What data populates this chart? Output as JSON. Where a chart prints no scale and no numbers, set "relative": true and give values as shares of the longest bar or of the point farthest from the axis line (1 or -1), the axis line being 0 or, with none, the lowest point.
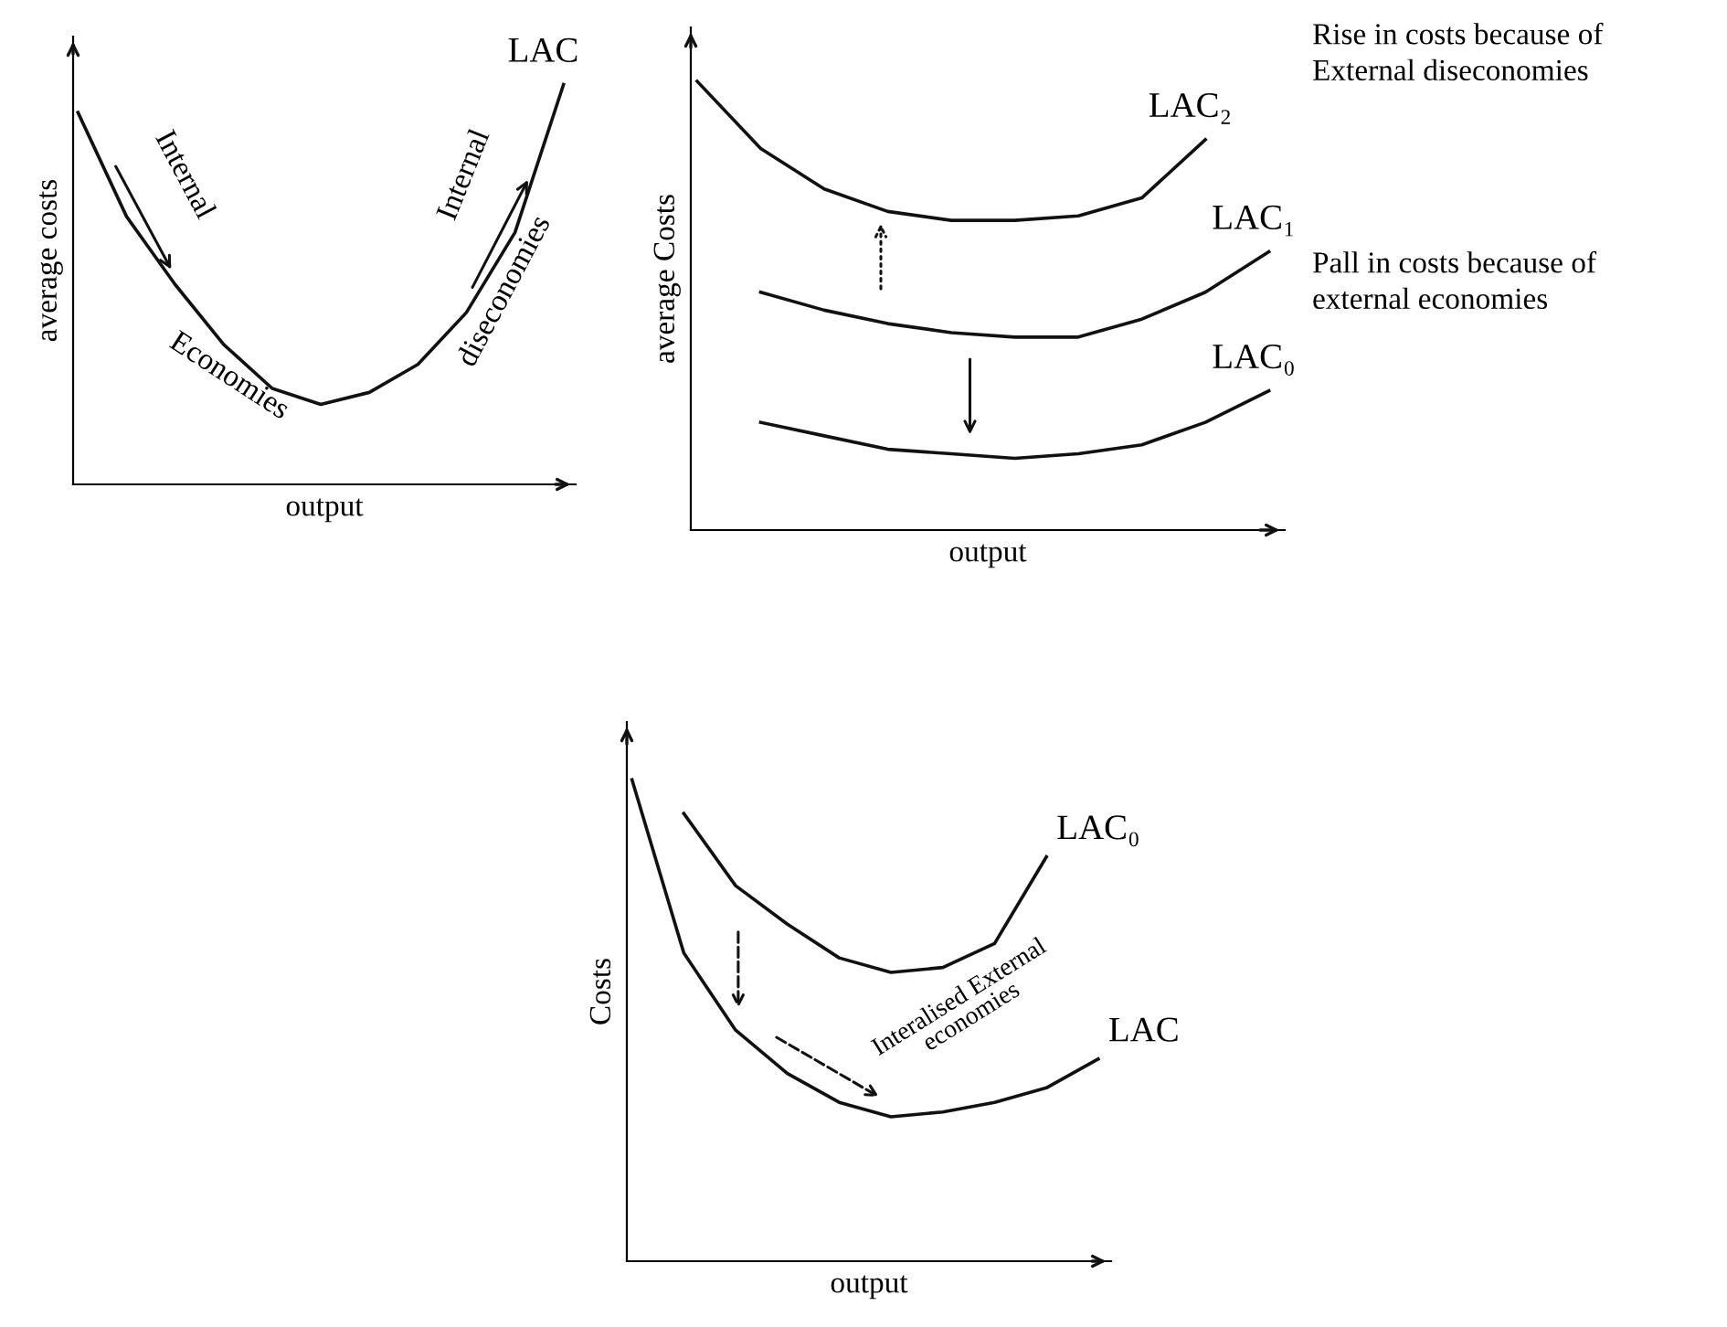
{
  "chart_data": [
    {
      "type": "line",
      "relative": true,
      "xlabel": "output",
      "ylabel": "average costs",
      "legend": false,
      "grid": false,
      "tick_labels": false,
      "marker": "none",
      "line_style": "solid",
      "categories": [
        null,
        null,
        null,
        null,
        null,
        null,
        null,
        null,
        null,
        null,
        null
      ],
      "series": [
        {
          "name": "LAC",
          "color": "#111111",
          "values": [
            0.93,
            0.67,
            0.5,
            0.35,
            0.24,
            0.2,
            0.23,
            0.3,
            0.43,
            0.63,
            1.0
          ]
        }
      ],
      "annotations": [
        "Internal",
        "Economies",
        "Internal",
        "diseconomies"
      ]
    },
    {
      "type": "line",
      "relative": true,
      "xlabel": "output",
      "ylabel": "average Costs",
      "legend": false,
      "grid": false,
      "tick_labels": false,
      "marker": "none",
      "line_style": "solid",
      "categories": [
        null,
        null,
        null,
        null,
        null,
        null,
        null,
        null,
        null,
        null
      ],
      "series": [
        {
          "name": "LAC₂",
          "color": "#111111",
          "values": [
            1.0,
            0.85,
            0.76,
            0.71,
            0.69,
            0.69,
            0.7,
            0.74,
            0.87,
            null
          ]
        },
        {
          "name": "LAC₁",
          "color": "#111111",
          "values": [
            null,
            0.53,
            0.49,
            0.46,
            0.44,
            0.43,
            0.43,
            0.47,
            0.53,
            0.62
          ]
        },
        {
          "name": "LAC₀",
          "color": "#111111",
          "values": [
            null,
            0.24,
            0.21,
            0.18,
            0.17,
            0.16,
            0.17,
            0.19,
            0.24,
            0.31
          ]
        }
      ],
      "annotations": [
        "Rise in costs because of\nExternal diseconomies",
        "Pall in costs because of\nexternal economies"
      ]
    },
    {
      "type": "line",
      "relative": true,
      "xlabel": "output",
      "ylabel": "Costs",
      "legend": false,
      "grid": false,
      "tick_labels": false,
      "marker": "none",
      "line_style": "solid",
      "categories": [
        null,
        null,
        null,
        null,
        null,
        null,
        null,
        null,
        null,
        null
      ],
      "series": [
        {
          "name": "LAC",
          "color": "#111111",
          "values": [
            1.0,
            0.64,
            0.48,
            0.39,
            0.33,
            0.3,
            0.31,
            0.33,
            0.36,
            0.42
          ]
        },
        {
          "name": "LAC₀",
          "color": "#111111",
          "values": [
            null,
            0.93,
            0.78,
            0.7,
            0.63,
            0.6,
            0.61,
            0.66,
            0.84,
            null
          ]
        }
      ],
      "annotations": [
        "Interalised External\neconomies"
      ]
    }
  ]
}
